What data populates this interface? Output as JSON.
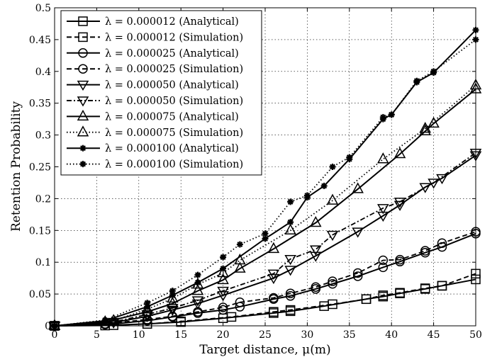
{
  "chart_data": {
    "type": "line",
    "title": "",
    "xlabel": "Target distance, μ(m)",
    "ylabel": "Retention Probability",
    "xlim": [
      0,
      50
    ],
    "ylim": [
      0,
      0.5
    ],
    "xticks": [
      0,
      5,
      10,
      15,
      20,
      25,
      30,
      35,
      40,
      45,
      50
    ],
    "yticks": [
      0,
      0.05,
      0.1,
      0.15,
      0.2,
      0.25,
      0.3,
      0.35,
      0.4,
      0.45,
      0.5
    ],
    "xtick_labels": [
      "0",
      "5",
      "10",
      "15",
      "20",
      "25",
      "30",
      "35",
      "40",
      "45",
      "50"
    ],
    "ytick_labels": [
      "0",
      "0.05",
      "0.1",
      "0.15",
      "0.2",
      "0.25",
      "0.3",
      "0.35",
      "0.4",
      "0.45",
      "0.5"
    ],
    "grid": true,
    "legend_position": "top-left",
    "series": [
      {
        "name": "λ = 0.000012 (Analytical)",
        "marker": "square",
        "line": "solid",
        "x": [
          0,
          6,
          11,
          15,
          20,
          26,
          28,
          32,
          37,
          39,
          41,
          44,
          46,
          50
        ],
        "y": [
          0,
          0.0005,
          0.003,
          0.006,
          0.012,
          0.02,
          0.023,
          0.031,
          0.042,
          0.046,
          0.051,
          0.058,
          0.063,
          0.073
        ]
      },
      {
        "name": "λ = 0.000012 (Simulation)",
        "marker": "square",
        "line": "dashed",
        "x": [
          0,
          7,
          11,
          15,
          21,
          26,
          28,
          33,
          37,
          39,
          41,
          44,
          46,
          50
        ],
        "y": [
          0,
          0.001,
          0.003,
          0.007,
          0.014,
          0.022,
          0.025,
          0.034,
          0.042,
          0.048,
          0.052,
          0.059,
          0.063,
          0.082
        ]
      },
      {
        "name": "λ = 0.000025 (Analytical)",
        "marker": "circle",
        "line": "solid",
        "x": [
          0,
          6,
          11,
          14,
          17,
          20,
          22,
          26,
          28,
          31,
          33,
          36,
          39,
          41,
          44,
          46,
          50
        ],
        "y": [
          0,
          0.002,
          0.008,
          0.014,
          0.02,
          0.025,
          0.03,
          0.042,
          0.047,
          0.058,
          0.066,
          0.078,
          0.092,
          0.101,
          0.115,
          0.124,
          0.145
        ]
      },
      {
        "name": "λ = 0.000025 (Simulation)",
        "marker": "circle",
        "line": "dashed",
        "x": [
          0,
          6,
          11,
          14,
          17,
          20,
          22,
          26,
          28,
          31,
          33,
          36,
          39,
          41,
          44,
          46,
          50
        ],
        "y": [
          0,
          0.003,
          0.01,
          0.015,
          0.022,
          0.029,
          0.037,
          0.044,
          0.051,
          0.061,
          0.07,
          0.083,
          0.103,
          0.104,
          0.118,
          0.13,
          0.148
        ]
      },
      {
        "name": "λ = 0.000050 (Analytical)",
        "marker": "triangle-down",
        "line": "solid",
        "x": [
          0,
          7,
          11,
          14,
          17,
          20,
          26,
          28,
          31,
          36,
          39,
          41,
          44,
          46,
          50
        ],
        "y": [
          0,
          0.005,
          0.015,
          0.025,
          0.035,
          0.048,
          0.075,
          0.088,
          0.11,
          0.148,
          0.173,
          0.19,
          0.218,
          0.232,
          0.268
        ]
      },
      {
        "name": "λ = 0.000050 (Simulation)",
        "marker": "triangle-down",
        "line": "dashdot",
        "x": [
          0,
          7,
          11,
          14,
          17,
          20,
          26,
          28,
          31,
          33,
          39,
          41,
          45,
          50
        ],
        "y": [
          0,
          0.006,
          0.018,
          0.028,
          0.04,
          0.055,
          0.082,
          0.105,
          0.12,
          0.143,
          0.185,
          0.195,
          0.225,
          0.272
        ]
      },
      {
        "name": "λ = 0.000075 (Analytical)",
        "marker": "triangle-up",
        "line": "solid",
        "x": [
          0,
          6,
          11,
          14,
          17,
          20,
          22,
          26,
          31,
          36,
          41,
          44,
          45,
          50
        ],
        "y": [
          0,
          0.006,
          0.022,
          0.035,
          0.055,
          0.072,
          0.09,
          0.121,
          0.162,
          0.215,
          0.27,
          0.306,
          0.318,
          0.372
        ]
      },
      {
        "name": "λ = 0.000075 (Simulation)",
        "marker": "triangle-up",
        "line": "dotted",
        "x": [
          0,
          7,
          11,
          14,
          17,
          20,
          22,
          28,
          33,
          39,
          44,
          50
        ],
        "y": [
          0,
          0.008,
          0.026,
          0.043,
          0.065,
          0.083,
          0.103,
          0.15,
          0.197,
          0.262,
          0.31,
          0.378
        ]
      },
      {
        "name": "λ = 0.000100 (Analytical)",
        "marker": "star",
        "line": "solid",
        "x": [
          0,
          6,
          11,
          14,
          17,
          20,
          25,
          28,
          30,
          32,
          35,
          39,
          40,
          43,
          45,
          50
        ],
        "y": [
          0,
          0.008,
          0.03,
          0.048,
          0.068,
          0.09,
          0.137,
          0.163,
          0.202,
          0.22,
          0.262,
          0.325,
          0.332,
          0.383,
          0.398,
          0.465
        ]
      },
      {
        "name": "λ = 0.000100 (Simulation)",
        "marker": "star",
        "line": "dotted",
        "x": [
          0,
          6,
          11,
          14,
          17,
          20,
          22,
          25,
          28,
          30,
          33,
          35,
          39,
          40,
          43,
          45,
          50
        ],
        "y": [
          0,
          0.009,
          0.036,
          0.055,
          0.08,
          0.108,
          0.128,
          0.145,
          0.195,
          0.205,
          0.25,
          0.265,
          0.328,
          0.332,
          0.385,
          0.4,
          0.45
        ]
      }
    ]
  }
}
